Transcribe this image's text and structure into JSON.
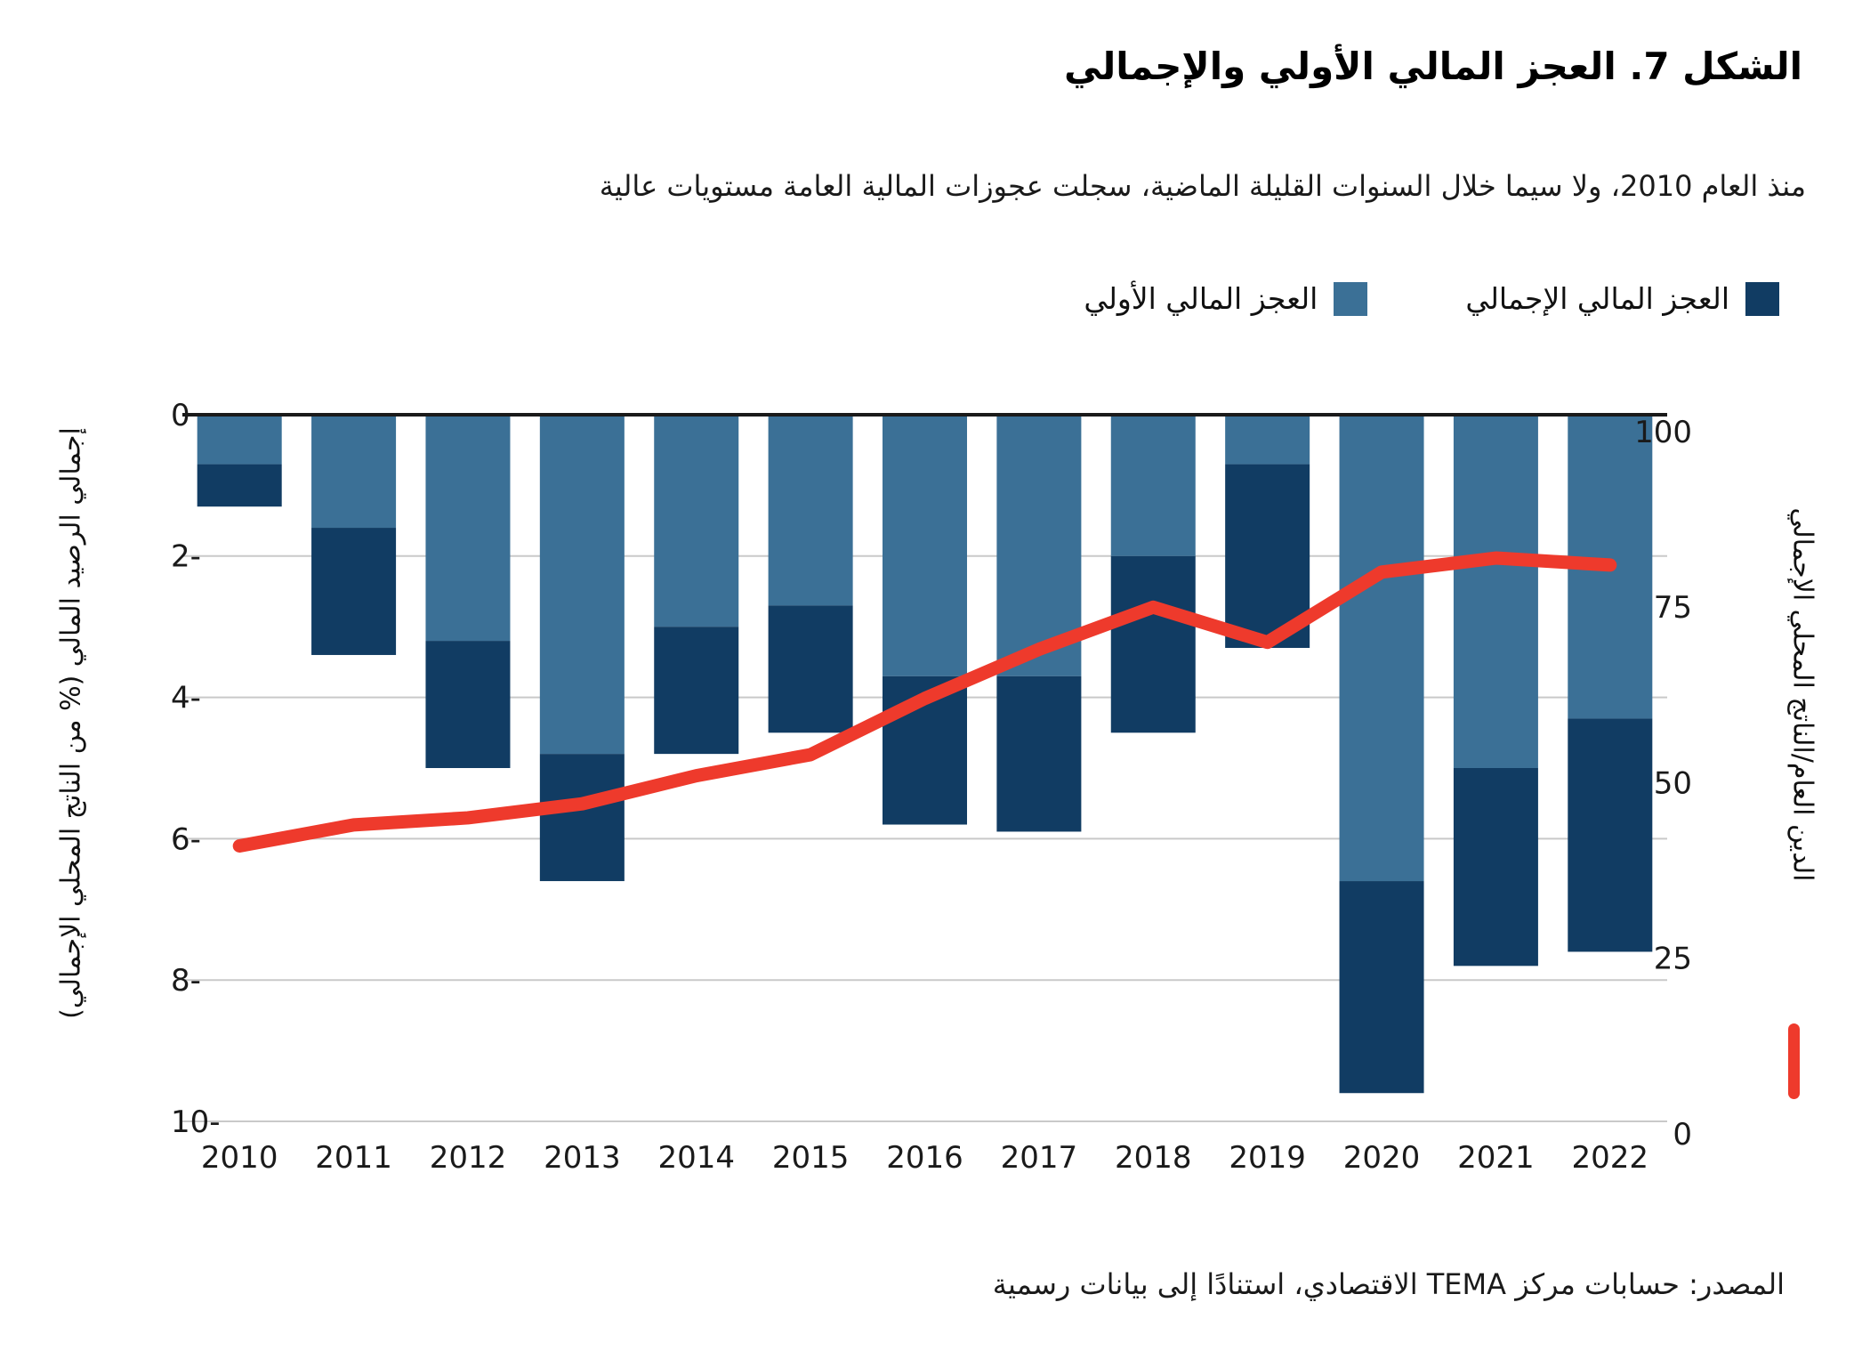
{
  "title": "الشكل 7. العجز المالي الأولي والإجمالي",
  "subtitle": "منذ العام 2010، ولا سيما خلال السنوات القليلة الماضية، سجلت عجوزات المالية العامة مستويات عالية",
  "legend": {
    "overall": "العجز المالي الإجمالي",
    "primary": "العجز المالي الأولي"
  },
  "source": "المصدر: حسابات مركز TEMA الاقتصادي، استنادًا إلى بيانات رسمية",
  "colors": {
    "primary_deficit": "#3B7096",
    "overall_deficit": "#113C63",
    "debt_line": "#EE3A2C",
    "grid": "#C9C9C9",
    "zero_line": "#1A1A1A",
    "text": "#1A1A1A"
  },
  "chart_data": {
    "type": "bar",
    "subtype": "stacked-bars-with-line",
    "categories": [
      "2010",
      "2011",
      "2012",
      "2013",
      "2014",
      "2015",
      "2016",
      "2017",
      "2018",
      "2019",
      "2020",
      "2021",
      "2022"
    ],
    "series": [
      {
        "name": "العجز المالي الأولي",
        "role": "bar_segment_from_zero",
        "axis": "left",
        "color": "#3B7096",
        "values": [
          -0.7,
          -1.6,
          -3.2,
          -4.8,
          -3.0,
          -2.7,
          -3.7,
          -3.7,
          -2.0,
          -0.7,
          -6.6,
          -5.0,
          -4.3
        ]
      },
      {
        "name": "العجز المالي الإجمالي",
        "role": "bar_total_extent",
        "axis": "left",
        "color": "#113C63",
        "values": [
          -1.3,
          -3.4,
          -5.0,
          -6.6,
          -4.8,
          -4.5,
          -5.8,
          -5.9,
          -4.5,
          -3.3,
          -9.6,
          -7.8,
          -7.6
        ]
      },
      {
        "name": "الدين العام/الناتج المحلي الإجمالي",
        "role": "line",
        "axis": "right",
        "color": "#EE3A2C",
        "values": [
          41,
          44,
          45,
          47,
          51,
          54,
          62,
          69,
          75,
          70,
          80,
          82,
          81
        ]
      }
    ],
    "left_axis": {
      "title": "إجمالي الرصيد المالي (% من الناتج المحلي الإجمالي)",
      "ticks": [
        0,
        -2,
        -4,
        -6,
        -8,
        -10
      ],
      "range": [
        -10,
        0
      ]
    },
    "right_axis": {
      "title": "الدين العام/الناتج المحلي الإجمالي",
      "ticks": [
        100,
        75,
        50,
        25,
        0
      ],
      "range": [
        0,
        100
      ]
    },
    "grid": true,
    "legend_position": "top"
  }
}
